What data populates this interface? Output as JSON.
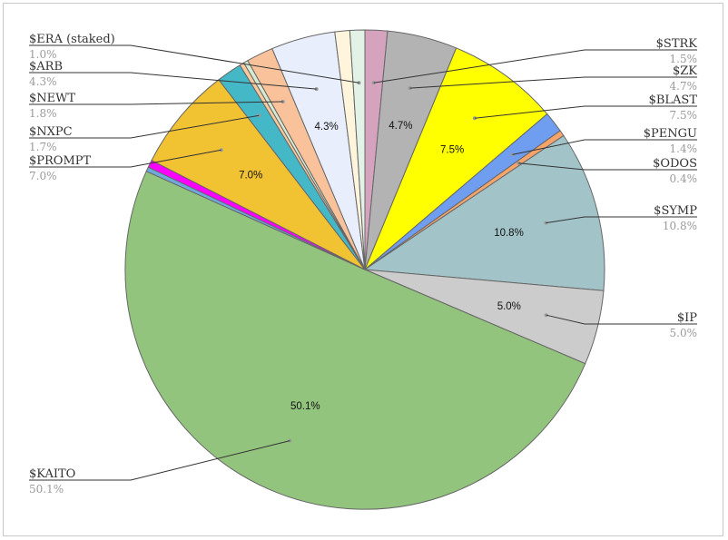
{
  "chart_data": {
    "type": "pie",
    "title": "",
    "slices": [
      {
        "label": "$STRK",
        "value": 1.5,
        "pct_text": "1.5%",
        "color": "#d6a3bf",
        "side": "right"
      },
      {
        "label": "$ZK",
        "value": 4.7,
        "pct_text": "4.7%",
        "color": "#b3b3b3",
        "side": "right",
        "inner": "4.7%"
      },
      {
        "label": "$BLAST",
        "value": 7.5,
        "pct_text": "7.5%",
        "color": "#ffff00",
        "side": "right",
        "inner": "7.5%"
      },
      {
        "label": "$PENGU",
        "value": 1.4,
        "pct_text": "1.4%",
        "color": "#6f9ef0",
        "side": "right"
      },
      {
        "label": "$ODOS",
        "value": 0.4,
        "pct_text": "0.4%",
        "color": "#f6a46a",
        "side": "right"
      },
      {
        "label": "$SYMP",
        "value": 10.8,
        "pct_text": "10.8%",
        "color": "#a2c4c9",
        "side": "right",
        "inner": "10.8%"
      },
      {
        "label": "$IP",
        "value": 5.0,
        "pct_text": "5.0%",
        "color": "#cccccc",
        "side": "right",
        "inner": "5.0%"
      },
      {
        "label": "$KAITO",
        "value": 50.1,
        "pct_text": "50.1%",
        "color": "#93c47d",
        "side": "left",
        "inner": "50.1%"
      },
      {
        "label": "",
        "value": 0.3,
        "pct_text": "",
        "color": "#6fa8dc",
        "side": "none"
      },
      {
        "label": "",
        "value": 0.5,
        "pct_text": "",
        "color": "#ff00ff",
        "side": "none"
      },
      {
        "label": "$PROMPT",
        "value": 7.0,
        "pct_text": "7.0%",
        "color": "#f1c232",
        "side": "left",
        "inner": "7.0%"
      },
      {
        "label": "$NXPC",
        "value": 1.7,
        "pct_text": "1.7%",
        "color": "#45b8c8",
        "side": "left"
      },
      {
        "label": "",
        "value": 0.3,
        "pct_text": "",
        "color": "#f9cb9c",
        "side": "none"
      },
      {
        "label": "",
        "value": 0.3,
        "pct_text": "",
        "color": "#d9ead3",
        "side": "none"
      },
      {
        "label": "$NEWT",
        "value": 1.8,
        "pct_text": "1.8%",
        "color": "#f9c29a",
        "side": "left"
      },
      {
        "label": "$ARB",
        "value": 4.3,
        "pct_text": "4.3%",
        "color": "#e8eefc",
        "side": "left",
        "inner": "4.3%"
      },
      {
        "label": "",
        "value": 1.0,
        "pct_text": "",
        "color": "#fff4dc",
        "side": "none"
      },
      {
        "label": "$ERA (staked)",
        "value": 1.0,
        "pct_text": "1.0%",
        "color": "#e2f2e6",
        "side": "left"
      }
    ],
    "legend": "none",
    "label_placement": "outside with leader lines"
  }
}
